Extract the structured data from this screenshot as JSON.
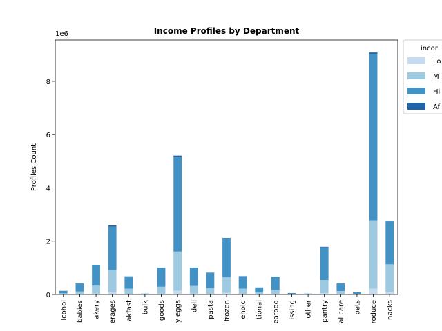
{
  "chart_data": {
    "type": "bar",
    "stacked": true,
    "title": "Income Profiles by Department",
    "xlabel": "",
    "ylabel": "Profiles Count",
    "y_offset_label": "1e6",
    "ylim": [
      0,
      9.55
    ],
    "yticks": [
      0,
      2,
      4,
      6,
      8
    ],
    "grid": false,
    "legend": {
      "title": "incor",
      "placement": "upper-right-outside",
      "labels": [
        "Lo",
        "M",
        "Hi",
        "Af"
      ]
    },
    "colors": [
      "#c6dbef",
      "#9ecae1",
      "#4292c6",
      "#1f63a8"
    ],
    "categories": [
      "lcohol",
      "babies",
      "akery",
      "erages",
      "akfast",
      "bulk",
      "goods",
      "y eggs",
      "deli",
      "pasta",
      "frozen",
      "ehold",
      "tional",
      "eafood",
      "issing",
      "other",
      "pantry",
      "al care",
      "pets",
      "roduce",
      "nacks"
    ],
    "series": [
      {
        "name": "Lo",
        "values": [
          0.005,
          0.01,
          0.03,
          0.1,
          0.02,
          0.001,
          0.03,
          0.14,
          0.03,
          0.02,
          0.06,
          0.02,
          0.01,
          0.02,
          0.002,
          0.001,
          0.05,
          0.01,
          0.003,
          0.22,
          0.1
        ]
      },
      {
        "name": "M",
        "values": [
          0.04,
          0.1,
          0.3,
          0.82,
          0.2,
          0.006,
          0.26,
          1.47,
          0.29,
          0.22,
          0.59,
          0.2,
          0.06,
          0.16,
          0.01,
          0.009,
          0.49,
          0.12,
          0.02,
          2.56,
          1.03
        ]
      },
      {
        "name": "Hi",
        "values": [
          0.09,
          0.3,
          0.77,
          1.63,
          0.45,
          0.025,
          0.71,
          3.55,
          0.68,
          0.57,
          1.45,
          0.46,
          0.19,
          0.48,
          0.04,
          0.022,
          1.23,
          0.28,
          0.06,
          6.25,
          1.61
        ]
      },
      {
        "name": "Af",
        "values": [
          0.002,
          0.006,
          0.01,
          0.04,
          0.01,
          0.001,
          0.01,
          0.05,
          0.01,
          0.01,
          0.02,
          0.01,
          0.003,
          0.005,
          0.001,
          0.001,
          0.02,
          0.005,
          0.001,
          0.05,
          0.02
        ]
      }
    ]
  }
}
